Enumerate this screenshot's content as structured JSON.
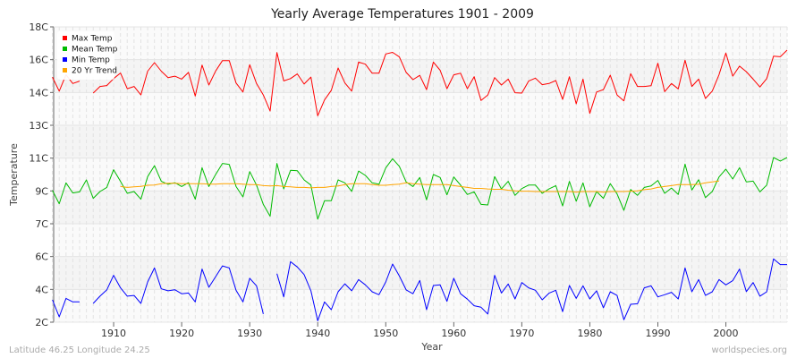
{
  "chart_data": {
    "type": "line",
    "title": "Yearly Average Temperatures 1901 - 2009",
    "xlabel": "Year",
    "ylabel": "Temperature",
    "year_range": [
      1901,
      2009
    ],
    "ylim": [
      2,
      18
    ],
    "y_tick_labels": [
      "2C",
      "4C",
      "6C",
      "7C",
      "9C",
      "11C",
      "13C",
      "14C",
      "16C",
      "18C"
    ],
    "x_ticks": [
      1910,
      1920,
      1930,
      1940,
      1950,
      1960,
      1970,
      1980,
      1990,
      2000
    ],
    "grid": true,
    "legend_position": "top-left",
    "series": [
      {
        "name": "Max Temp",
        "color": "#ff0000",
        "start_year": 1901,
        "values": [
          15.28,
          14.52,
          15.4,
          14.93,
          15.06,
          null,
          14.41,
          14.77,
          14.82,
          15.2,
          15.5,
          14.65,
          14.77,
          14.31,
          15.6,
          16.06,
          15.6,
          15.25,
          15.33,
          15.17,
          15.53,
          14.25,
          15.93,
          14.85,
          15.61,
          16.17,
          16.17,
          14.96,
          14.47,
          15.95,
          14.93,
          14.31,
          13.44,
          16.61,
          15.07,
          15.2,
          15.45,
          14.9,
          15.28,
          13.18,
          14.04,
          14.56,
          15.77,
          14.96,
          14.52,
          16.09,
          15.98,
          15.49,
          15.49,
          16.53,
          16.62,
          16.37,
          15.53,
          15.14,
          15.37,
          14.6,
          16.09,
          15.65,
          14.65,
          15.4,
          15.49,
          14.65,
          15.3,
          14.01,
          14.31,
          15.25,
          14.85,
          15.17,
          14.43,
          14.41,
          15.06,
          15.22,
          14.87,
          14.93,
          15.09,
          14.07,
          15.3,
          13.83,
          15.17,
          13.31,
          14.47,
          14.6,
          15.38,
          14.31,
          13.99,
          15.46,
          14.77,
          14.77,
          14.81,
          16.03,
          14.49,
          14.93,
          14.64,
          16.19,
          14.77,
          15.17,
          14.12,
          14.52,
          15.41,
          16.58,
          15.33,
          15.87,
          15.57,
          15.17,
          14.74,
          15.2,
          16.41,
          16.38,
          16.74
        ]
      },
      {
        "name": "Mean Temp",
        "color": "#00bb00",
        "start_year": 1901,
        "values": [
          9.14,
          8.42,
          9.55,
          9.0,
          9.06,
          9.71,
          8.71,
          9.08,
          9.3,
          10.26,
          9.63,
          8.98,
          9.08,
          8.66,
          9.89,
          10.48,
          9.63,
          9.47,
          9.56,
          9.35,
          9.56,
          8.66,
          10.37,
          9.35,
          10.0,
          10.6,
          10.55,
          9.35,
          8.79,
          10.16,
          9.43,
          8.38,
          7.74,
          10.6,
          9.22,
          10.23,
          10.21,
          9.71,
          9.43,
          7.58,
          8.58,
          8.58,
          9.71,
          9.55,
          9.09,
          10.19,
          9.95,
          9.55,
          9.47,
          10.36,
          10.86,
          10.44,
          9.6,
          9.35,
          9.84,
          8.63,
          10.0,
          9.84,
          8.9,
          9.87,
          9.43,
          8.92,
          9.06,
          8.38,
          8.35,
          9.89,
          9.22,
          9.63,
          8.87,
          9.24,
          9.43,
          9.43,
          8.98,
          9.22,
          9.4,
          8.3,
          9.63,
          8.55,
          9.55,
          8.25,
          9.08,
          8.71,
          9.51,
          8.95,
          8.06,
          9.19,
          8.87,
          9.3,
          9.38,
          9.68,
          8.98,
          9.27,
          8.92,
          10.56,
          9.16,
          9.72,
          8.75,
          9.08,
          9.87,
          10.29,
          9.76,
          10.37,
          9.6,
          9.64,
          9.06,
          9.43,
          10.92,
          10.73,
          10.92
        ]
      },
      {
        "name": "Min Temp",
        "color": "#0000ff",
        "start_year": 1901,
        "values": [
          3.21,
          2.29,
          3.29,
          3.1,
          3.1,
          null,
          3.02,
          3.41,
          3.75,
          4.54,
          3.86,
          3.41,
          3.45,
          3.02,
          4.18,
          4.94,
          3.81,
          3.7,
          3.76,
          3.54,
          3.58,
          3.1,
          4.88,
          3.89,
          4.47,
          5.05,
          4.94,
          3.73,
          3.1,
          4.38,
          3.97,
          2.44,
          null,
          4.63,
          3.37,
          5.28,
          4.99,
          4.58,
          3.7,
          2.08,
          3.1,
          2.68,
          3.65,
          4.08,
          3.7,
          4.31,
          4.02,
          3.65,
          3.49,
          4.18,
          5.15,
          4.5,
          3.75,
          3.54,
          4.26,
          2.68,
          3.99,
          4.02,
          3.13,
          4.38,
          3.54,
          3.25,
          2.89,
          2.81,
          2.44,
          4.54,
          3.58,
          4.07,
          3.26,
          4.15,
          3.86,
          3.73,
          3.21,
          3.57,
          3.73,
          2.57,
          3.99,
          3.29,
          3.97,
          3.26,
          3.7,
          2.78,
          3.65,
          3.45,
          2.13,
          2.97,
          3.0,
          3.86,
          3.97,
          3.37,
          3.49,
          3.62,
          3.26,
          4.94,
          3.65,
          4.31,
          3.45,
          3.65,
          4.31,
          4.02,
          4.25,
          4.88,
          3.66,
          4.15,
          3.41,
          3.65,
          5.43,
          5.12,
          5.12
        ]
      },
      {
        "name": "20 Yr Trend",
        "color": "#ffa500",
        "start_year": 1911,
        "values": [
          9.35,
          9.3,
          9.33,
          9.36,
          9.42,
          9.43,
          9.5,
          9.53,
          9.53,
          9.5,
          9.5,
          9.5,
          9.5,
          9.48,
          9.48,
          9.5,
          9.5,
          9.5,
          9.48,
          9.45,
          9.45,
          9.4,
          9.38,
          9.4,
          9.35,
          9.33,
          9.3,
          9.3,
          9.28,
          9.3,
          9.3,
          9.35,
          9.38,
          9.45,
          9.5,
          9.5,
          9.5,
          9.45,
          9.42,
          9.42,
          9.45,
          9.48,
          9.55,
          9.5,
          9.48,
          9.45,
          9.45,
          9.45,
          9.45,
          9.4,
          9.35,
          9.3,
          9.25,
          9.25,
          9.22,
          9.2,
          9.2,
          9.15,
          9.12,
          9.1,
          9.1,
          9.08,
          9.08,
          9.08,
          9.08,
          9.08,
          9.08,
          9.05,
          9.08,
          9.08,
          9.08,
          9.05,
          9.08,
          9.08,
          9.08,
          9.1,
          9.12,
          9.18,
          9.22,
          9.3,
          9.35,
          9.4,
          9.45,
          9.45,
          9.45,
          9.47,
          9.55,
          9.6,
          9.65
        ]
      }
    ]
  },
  "footer": {
    "location": "Latitude 46.25 Longitude 24.25",
    "source": "worldspecies.org"
  }
}
